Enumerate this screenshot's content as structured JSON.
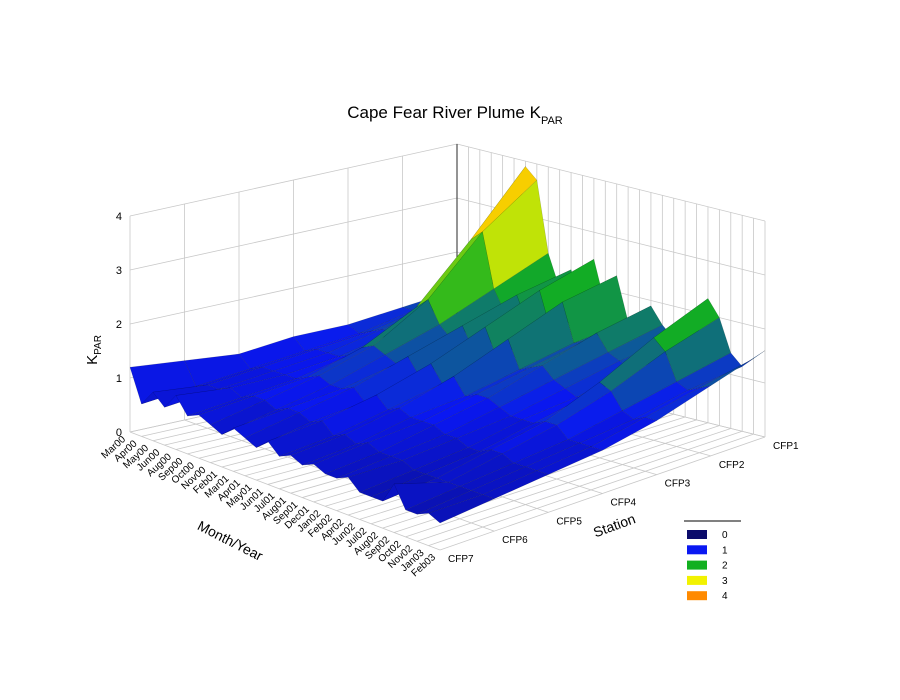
{
  "chart_data": {
    "type": "surface3d",
    "title": "Cape Fear River Plume K",
    "title_sub": "PAR",
    "x_label": "Month/Year",
    "y_label": "Station",
    "z_label": "K",
    "z_label_sub": "PAR",
    "months": [
      "Mar00",
      "Apr00",
      "May00",
      "Jun00",
      "Aug00",
      "Sep00",
      "Oct00",
      "Nov00",
      "Feb01",
      "Mar01",
      "Apr01",
      "May01",
      "Jun01",
      "Jul01",
      "Aug01",
      "Sep01",
      "Dec01",
      "Jan02",
      "Feb02",
      "Apr02",
      "Jun02",
      "Jul02",
      "Aug02",
      "Sep02",
      "Oct02",
      "Nov02",
      "Jan03",
      "Feb03"
    ],
    "stations": [
      "CFP1",
      "CFP2",
      "CFP3",
      "CFP4",
      "CFP5",
      "CFP6",
      "CFP7"
    ],
    "z": [
      [
        1.3,
        1.2,
        1.1,
        1.1,
        1.0,
        1.1,
        1.2
      ],
      [
        1.4,
        1.2,
        1.0,
        0.9,
        0.8,
        0.7,
        0.6
      ],
      [
        1.5,
        1.3,
        1.1,
        1.0,
        0.9,
        0.8,
        0.9
      ],
      [
        1.6,
        1.4,
        1.2,
        1.0,
        0.9,
        0.8,
        0.7
      ],
      [
        1.7,
        1.5,
        1.2,
        1.0,
        0.9,
        0.9,
        1.0
      ],
      [
        2.0,
        1.7,
        1.4,
        1.1,
        0.9,
        0.8,
        0.7
      ],
      [
        3.9,
        2.8,
        1.8,
        1.3,
        1.0,
        0.9,
        0.8
      ],
      [
        3.7,
        3.0,
        2.0,
        1.4,
        1.1,
        0.9,
        0.7
      ],
      [
        2.4,
        2.0,
        1.6,
        1.3,
        1.0,
        0.8,
        0.6
      ],
      [
        1.8,
        1.6,
        1.4,
        1.2,
        1.0,
        0.9,
        0.8
      ],
      [
        2.2,
        2.0,
        1.7,
        1.4,
        1.1,
        0.9,
        0.7
      ],
      [
        1.6,
        1.5,
        1.3,
        1.1,
        0.9,
        0.8,
        0.6
      ],
      [
        2.5,
        2.2,
        1.8,
        1.4,
        1.1,
        0.9,
        0.8
      ],
      [
        1.7,
        1.5,
        1.3,
        1.1,
        0.9,
        0.7,
        0.6
      ],
      [
        2.3,
        2.1,
        1.7,
        1.3,
        1.0,
        0.8,
        0.7
      ],
      [
        1.5,
        1.4,
        1.2,
        1.0,
        0.9,
        0.7,
        0.6
      ],
      [
        1.6,
        1.5,
        1.3,
        1.1,
        0.9,
        0.8,
        0.7
      ],
      [
        1.9,
        1.7,
        1.4,
        1.1,
        0.9,
        0.7,
        0.6
      ],
      [
        1.6,
        1.4,
        1.2,
        1.0,
        0.8,
        0.7,
        0.6
      ],
      [
        1.4,
        1.3,
        1.1,
        0.9,
        0.8,
        0.7,
        0.7
      ],
      [
        1.3,
        1.2,
        1.0,
        0.9,
        0.7,
        0.6,
        0.5
      ],
      [
        1.5,
        1.3,
        1.1,
        0.9,
        0.7,
        0.6,
        0.5
      ],
      [
        2.3,
        1.9,
        1.4,
        1.0,
        0.8,
        0.6,
        0.5
      ],
      [
        2.0,
        1.7,
        1.3,
        1.0,
        0.8,
        0.6,
        0.9
      ],
      [
        1.4,
        1.2,
        1.0,
        0.8,
        0.7,
        0.6,
        0.5
      ],
      [
        1.2,
        1.1,
        0.9,
        0.8,
        0.7,
        0.6,
        0.5
      ],
      [
        1.4,
        1.2,
        1.0,
        0.8,
        0.7,
        0.6,
        0.6
      ],
      [
        1.6,
        1.3,
        1.0,
        0.8,
        0.7,
        0.6,
        0.5
      ]
    ],
    "zlim": [
      0,
      4
    ],
    "zticks": [
      0,
      1,
      2,
      3,
      4
    ],
    "grid": true,
    "colorscale": [
      {
        "value": 0,
        "color": "#0b0b6b"
      },
      {
        "value": 1,
        "color": "#0a18f2"
      },
      {
        "value": 2,
        "color": "#12b020"
      },
      {
        "value": 3,
        "color": "#f2f200"
      },
      {
        "value": 4,
        "color": "#ff8a00"
      }
    ]
  }
}
